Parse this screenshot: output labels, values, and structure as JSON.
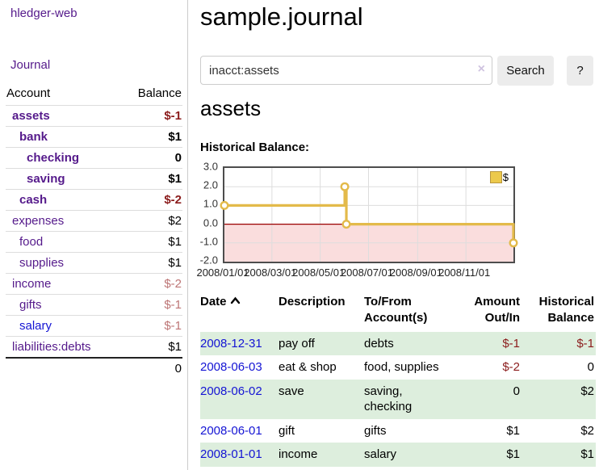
{
  "sidebar": {
    "brand": "hledger-web",
    "nav": [
      {
        "label": "Journal"
      }
    ],
    "accounts_table": {
      "headers": {
        "account": "Account",
        "balance": "Balance"
      },
      "rows": [
        {
          "name": "assets",
          "balance": "$-1",
          "indent": 1,
          "bold": true,
          "balance_style": "neg-strong",
          "link": "purple"
        },
        {
          "name": "bank",
          "balance": "$1",
          "indent": 2,
          "bold": true,
          "balance_style": "pos-strong",
          "link": "purple"
        },
        {
          "name": "checking",
          "balance": "0",
          "indent": 3,
          "bold": true,
          "balance_style": "pos-strong",
          "link": "purple"
        },
        {
          "name": "saving",
          "balance": "$1",
          "indent": 3,
          "bold": true,
          "balance_style": "pos-strong",
          "link": "purple"
        },
        {
          "name": "cash",
          "balance": "$-2",
          "indent": 2,
          "bold": true,
          "balance_style": "neg-strong",
          "link": "purple"
        },
        {
          "name": "expenses",
          "balance": "$2",
          "indent": 1,
          "bold": false,
          "balance_style": "pos",
          "link": "purple"
        },
        {
          "name": "food",
          "balance": "$1",
          "indent": 2,
          "bold": false,
          "balance_style": "pos",
          "link": "purple"
        },
        {
          "name": "supplies",
          "balance": "$1",
          "indent": 2,
          "bold": false,
          "balance_style": "pos",
          "link": "purple"
        },
        {
          "name": "income",
          "balance": "$-2",
          "indent": 1,
          "bold": false,
          "balance_style": "neg-light",
          "link": "purple"
        },
        {
          "name": "gifts",
          "balance": "$-1",
          "indent": 2,
          "bold": false,
          "balance_style": "neg-light",
          "link": "purple"
        },
        {
          "name": "salary",
          "balance": "$-1",
          "indent": 2,
          "bold": false,
          "balance_style": "neg-light",
          "link": "blue"
        },
        {
          "name": "liabilities:debts",
          "balance": "$1",
          "indent": 1,
          "bold": false,
          "balance_style": "pos",
          "link": "purple"
        }
      ],
      "total": "0"
    }
  },
  "header": {
    "title": "sample.journal"
  },
  "search": {
    "value": "inacct:assets",
    "clear_icon": "×",
    "button_label": "Search",
    "help_label": "?"
  },
  "account_page": {
    "heading": "assets",
    "chart_title": "Historical Balance:"
  },
  "chart_data": {
    "type": "line",
    "step": true,
    "title": "Historical Balance",
    "legend": {
      "label": "$",
      "position": "top-right"
    },
    "ylim": [
      -2,
      3
    ],
    "series": [
      {
        "name": "$",
        "x": [
          "2008-01-01",
          "2008-06-01",
          "2008-06-03",
          "2008-12-31"
        ],
        "values": [
          1,
          2,
          0,
          -1
        ],
        "x_fraction": [
          0,
          0.4164,
          0.4219,
          1
        ]
      }
    ],
    "yticks": [
      {
        "label": "3.0",
        "v": 3,
        "grid": "none"
      },
      {
        "label": "2.0",
        "v": 2,
        "grid": "light"
      },
      {
        "label": "1.0",
        "v": 1,
        "grid": "light"
      },
      {
        "label": "0.0",
        "v": 0,
        "grid": "zero"
      },
      {
        "label": "-1.0",
        "v": -1,
        "grid": "light"
      },
      {
        "label": "-2.0",
        "v": -2,
        "grid": "none"
      }
    ],
    "xticks": [
      {
        "label": "2008/01/01",
        "f": 0
      },
      {
        "label": "2008/03/01",
        "f": 0.1644
      },
      {
        "label": "2008/05/01",
        "f": 0.3315
      },
      {
        "label": "2008/07/01",
        "f": 0.4986
      },
      {
        "label": "2008/09/01",
        "f": 0.6685
      },
      {
        "label": "2008/11/01",
        "f": 0.8356
      }
    ],
    "colors": {
      "line": "#e3ba4a",
      "marker_fill": "#ffffff",
      "negative_fill": "#fadddd",
      "zero_line": "#990000",
      "grid": "#dddddd"
    }
  },
  "register": {
    "headers": [
      {
        "label": "Date"
      },
      {
        "label": "Description"
      },
      {
        "label": "To/From Account(s)"
      },
      {
        "label": "Amount Out/In"
      },
      {
        "label": "Historical Balance"
      }
    ],
    "rows": [
      {
        "date": "2008-12-31",
        "description": "pay off",
        "accounts": "debts",
        "amount": "$-1",
        "amount_neg": true,
        "balance": "$-1",
        "balance_neg": true,
        "shaded": true
      },
      {
        "date": "2008-06-03",
        "description": "eat & shop",
        "accounts": "food, supplies",
        "amount": "$-2",
        "amount_neg": true,
        "balance": "0",
        "balance_neg": false,
        "shaded": false
      },
      {
        "date": "2008-06-02",
        "description": "save",
        "accounts": "saving, checking",
        "amount": "0",
        "amount_neg": false,
        "balance": "$2",
        "balance_neg": false,
        "shaded": true
      },
      {
        "date": "2008-06-01",
        "description": "gift",
        "accounts": "gifts",
        "amount": "$1",
        "amount_neg": false,
        "balance": "$2",
        "balance_neg": false,
        "shaded": false
      },
      {
        "date": "2008-01-01",
        "description": "income",
        "accounts": "salary",
        "amount": "$1",
        "amount_neg": false,
        "balance": "$1",
        "balance_neg": false,
        "shaded": true
      }
    ]
  }
}
